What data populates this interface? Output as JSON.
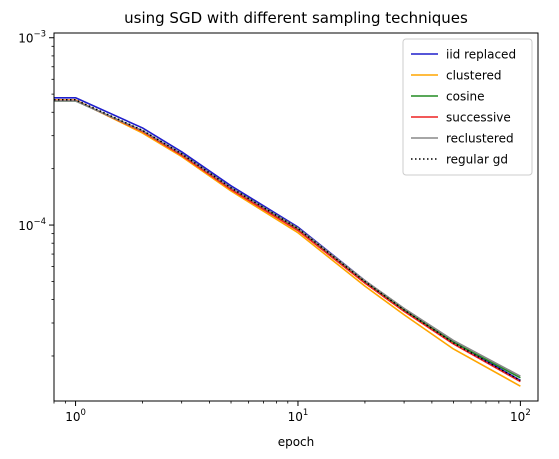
{
  "chart_data": {
    "type": "line",
    "title": "using SGD with different sampling techniques",
    "xlabel": "epoch",
    "ylabel": "",
    "xscale": "log",
    "yscale": "log",
    "xlim": [
      0.8,
      120
    ],
    "ylim": [
      1.15e-05,
      0.00106
    ],
    "grid": false,
    "legend_position": "top-right",
    "x_ticks": [
      {
        "value": 1,
        "base": "10",
        "exp": "0"
      },
      {
        "value": 10,
        "base": "10",
        "exp": "1"
      },
      {
        "value": 100,
        "base": "10",
        "exp": "2"
      }
    ],
    "y_ticks": [
      {
        "value": 0.0001,
        "base": "10",
        "exp": "−4"
      },
      {
        "value": 0.001,
        "base": "10",
        "exp": "−3"
      }
    ],
    "x": [
      0.8,
      1,
      2,
      3,
      5,
      10,
      20,
      30,
      50,
      100
    ],
    "series": [
      {
        "name": "iid replaced",
        "color": "#1f1fcc",
        "dash": "solid",
        "values": [
          0.000478,
          0.000478,
          0.00033,
          0.000246,
          0.000162,
          9.75e-05,
          5.05e-05,
          3.55e-05,
          2.38e-05,
          1.48e-05
        ]
      },
      {
        "name": "clustered",
        "color": "#ffa500",
        "dash": "solid",
        "values": [
          0.000465,
          0.000465,
          0.00031,
          0.000232,
          0.000152,
          9.1e-05,
          4.72e-05,
          3.32e-05,
          2.18e-05,
          1.38e-05
        ]
      },
      {
        "name": "cosine",
        "color": "#228b22",
        "dash": "solid",
        "values": [
          0.00046,
          0.00046,
          0.000318,
          0.000238,
          0.000156,
          9.5e-05,
          4.98e-05,
          3.52e-05,
          2.37e-05,
          1.53e-05
        ]
      },
      {
        "name": "successive",
        "color": "#ee2222",
        "dash": "solid",
        "values": [
          0.000462,
          0.000462,
          0.000316,
          0.000236,
          0.000155,
          9.35e-05,
          4.9e-05,
          3.46e-05,
          2.32e-05,
          1.46e-05
        ]
      },
      {
        "name": "reclustered",
        "color": "#888888",
        "dash": "solid",
        "values": [
          0.00046,
          0.00046,
          0.000319,
          0.00024,
          0.000158,
          9.62e-05,
          5.05e-05,
          3.59e-05,
          2.42e-05,
          1.56e-05
        ]
      },
      {
        "name": "regular gd",
        "color": "#000000",
        "dash": "dotted",
        "values": [
          0.000466,
          0.000466,
          0.00032,
          0.00024,
          0.000158,
          9.58e-05,
          4.99e-05,
          3.52e-05,
          2.35e-05,
          1.48e-05
        ]
      }
    ]
  }
}
